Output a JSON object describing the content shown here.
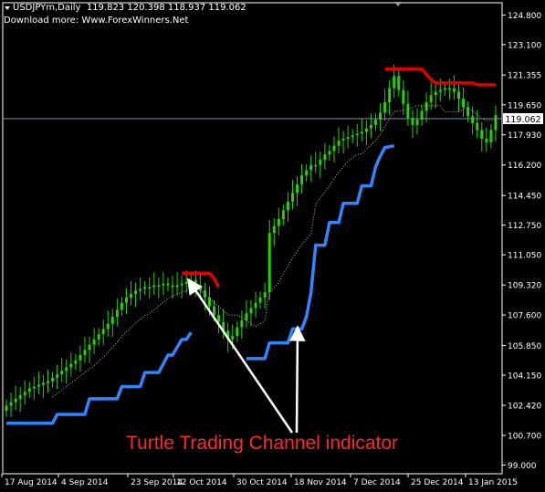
{
  "header": {
    "symbol_line": "USDJPYm,Daily  119.823 120.398 118.937 119.062",
    "download_line": "Download more: Www.ForexWinners.Net"
  },
  "annotation": "Turtle Trading Channel indicator",
  "colors": {
    "background": "#000000",
    "frame": "#ffffff",
    "candles": "#22d400",
    "channel_mid": "#bdbdbd",
    "long_stop": "#2f86ff",
    "short_stop": "#e00000",
    "price_line": "#7f8fa0",
    "price_label_bg": "#ffffff",
    "price_label_text": "#000000",
    "annotation": "#ff2828",
    "arrows": "#ffffff"
  },
  "chart_data": {
    "type": "candlestick",
    "symbol": "USDJPYm",
    "timeframe": "Daily",
    "current_price": "119.062",
    "ylim": [
      98.5,
      125.5
    ],
    "y_ticks": [
      "124.800",
      "123.100",
      "121.355",
      "119.650",
      "117.930",
      "116.200",
      "114.450",
      "112.750",
      "111.050",
      "109.320",
      "107.600",
      "105.850",
      "104.150",
      "102.420",
      "100.700",
      "99.000"
    ],
    "x_ticks": [
      "17 Aug 2014",
      "4 Sep 2014",
      "23 Sep 2014",
      "12 Oct 2014",
      "30 Oct 2014",
      "18 Nov 2014",
      "7 Dec 2014",
      "25 Dec 2014",
      "13 Jan 2015"
    ],
    "bar_count": 107,
    "closes": [
      102.4,
      102.6,
      102.8,
      103.0,
      103.2,
      103.4,
      103.5,
      103.6,
      103.7,
      103.8,
      104.0,
      104.2,
      104.4,
      104.6,
      104.8,
      105.0,
      105.3,
      105.6,
      105.9,
      106.2,
      106.5,
      106.8,
      107.1,
      107.5,
      107.9,
      108.3,
      108.6,
      108.8,
      109.0,
      109.1,
      109.2,
      109.2,
      109.3,
      109.3,
      109.4,
      109.3,
      109.2,
      109.3,
      109.4,
      109.5,
      109.6,
      109.3,
      109.0,
      108.6,
      108.1,
      107.6,
      107.2,
      106.7,
      106.2,
      106.4,
      106.9,
      107.3,
      107.7,
      108.0,
      108.3,
      108.6,
      108.9,
      112.3,
      112.7,
      113.1,
      113.6,
      114.1,
      114.6,
      115.1,
      115.6,
      115.9,
      116.2,
      116.2,
      116.5,
      116.8,
      117.0,
      117.3,
      117.6,
      117.7,
      117.8,
      117.9,
      118.0,
      118.1,
      118.3,
      118.5,
      118.8,
      119.2,
      119.8,
      120.6,
      121.3,
      120.5,
      119.7,
      118.9,
      118.5,
      118.8,
      119.3,
      119.8,
      120.2,
      120.4,
      120.5,
      120.6,
      120.6,
      120.4,
      120.0,
      119.5,
      119.0,
      118.6,
      118.2,
      117.7,
      117.5,
      118.2,
      119.062
    ],
    "series": [
      {
        "name": "long-stop",
        "color": "#2f86ff",
        "x": [
          0,
          10,
          11,
          17,
          18,
          24,
          25,
          29,
          30,
          33,
          34,
          35,
          36,
          38,
          39,
          40
        ],
        "y": [
          101.4,
          101.4,
          101.9,
          101.9,
          102.8,
          102.8,
          103.5,
          103.5,
          104.3,
          104.3,
          104.8,
          105.3,
          105.3,
          106.2,
          106.2,
          106.6
        ]
      },
      {
        "name": "long-stop",
        "color": "#2f86ff",
        "x": [
          52,
          56,
          57,
          61,
          62,
          64,
          65,
          66,
          67,
          69,
          70,
          72,
          73,
          76,
          77,
          79,
          80,
          81,
          82,
          84
        ],
        "y": [
          105.1,
          105.1,
          106.0,
          106.0,
          106.8,
          106.8,
          107.5,
          108.9,
          111.6,
          111.6,
          112.9,
          112.9,
          114.0,
          114.0,
          115.0,
          115.0,
          116.1,
          116.7,
          117.2,
          117.3
        ]
      },
      {
        "name": "short-stop",
        "color": "#e00000",
        "x": [
          38,
          44,
          45,
          46
        ],
        "y": [
          110.0,
          110.0,
          109.7,
          109.2
        ]
      },
      {
        "name": "short-stop",
        "color": "#e00000",
        "x": [
          82,
          90,
          91,
          92,
          93,
          101,
          102,
          106
        ],
        "y": [
          121.7,
          121.7,
          121.4,
          121.1,
          120.9,
          120.9,
          120.8,
          120.8
        ]
      }
    ]
  }
}
